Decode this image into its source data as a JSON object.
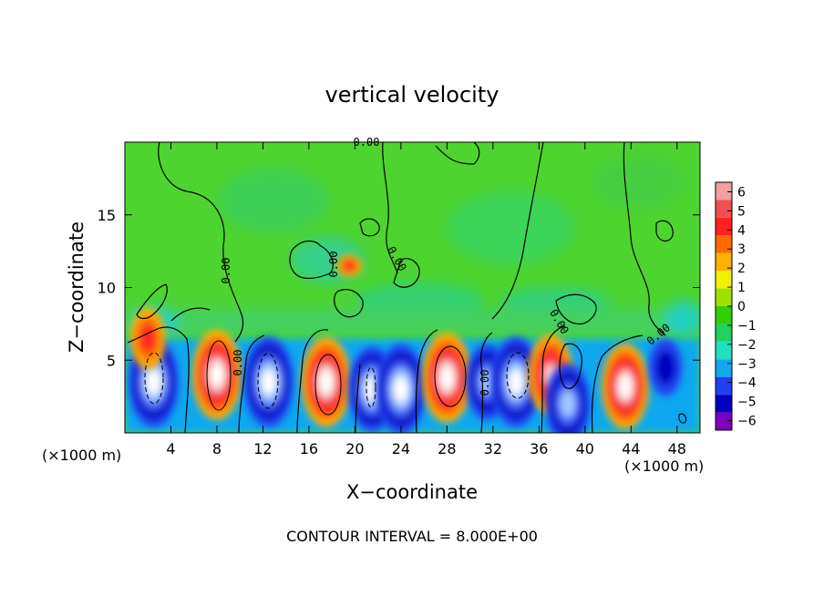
{
  "chart_data": {
    "type": "heatmap",
    "title": "vertical velocity",
    "xlabel": "X−coordinate",
    "ylabel": "Z−coordinate",
    "x_unit_left": "(×1000 m)",
    "x_unit_right": "(×1000 m)",
    "footer": "CONTOUR INTERVAL = 8.000E+00",
    "xlim": [
      0,
      50
    ],
    "ylim": [
      0,
      20
    ],
    "x_ticks": [
      "4",
      "8",
      "12",
      "16",
      "20",
      "24",
      "28",
      "32",
      "36",
      "40",
      "44",
      "48"
    ],
    "y_ticks": [
      "5",
      "10",
      "15"
    ],
    "contour_labels": [
      "0.00",
      "0.00",
      "0.00",
      "0.00",
      "0.00",
      "0.00",
      "0.00",
      "0.00"
    ],
    "colorbar": {
      "ticks": [
        "6",
        "5",
        "4",
        "3",
        "2",
        "1",
        "0",
        "−1",
        "−2",
        "−3",
        "−4",
        "−5",
        "−6"
      ],
      "colors": [
        "#f0a0a0",
        "#f05050",
        "#ff2020",
        "#ff6a00",
        "#ffb000",
        "#f0f000",
        "#a0e000",
        "#30d000",
        "#20d060",
        "#20e0c0",
        "#10a8f0",
        "#2040f0",
        "#0000c0",
        "#8000c0"
      ]
    },
    "cells": [
      {
        "x": 2.5,
        "z": 3.5,
        "w": -6
      },
      {
        "x": 8.0,
        "z": 4.0,
        "w": 6
      },
      {
        "x": 12.5,
        "z": 3.5,
        "w": -6
      },
      {
        "x": 17.5,
        "z": 3.5,
        "w": 6
      },
      {
        "x": 21.5,
        "z": 3.0,
        "w": -5.5
      },
      {
        "x": 24.0,
        "z": 3.0,
        "w": -6
      },
      {
        "x": 28.0,
        "z": 3.8,
        "w": 6
      },
      {
        "x": 31.5,
        "z": 3.5,
        "w": -4.5
      },
      {
        "x": 34.0,
        "z": 3.5,
        "w": -6
      },
      {
        "x": 37.0,
        "z": 4.0,
        "w": 5
      },
      {
        "x": 38.5,
        "z": 2.0,
        "w": -5
      },
      {
        "x": 43.5,
        "z": 3.2,
        "w": 5.5
      },
      {
        "x": 47.0,
        "z": 4.5,
        "w": -2.5
      },
      {
        "x": 19.5,
        "z": 11.5,
        "w": 2.5
      },
      {
        "x": 2.0,
        "z": 6.5,
        "w": 3
      }
    ]
  }
}
